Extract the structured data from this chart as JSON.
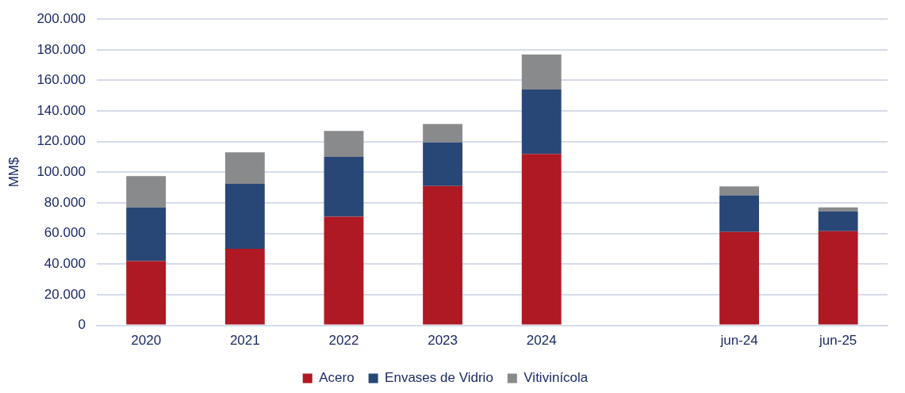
{
  "chart_data": {
    "type": "bar",
    "stacked": true,
    "ylabel": "MM$",
    "categories": [
      "2020",
      "2021",
      "2022",
      "2023",
      "2024",
      null,
      "jun-24",
      "jun-25"
    ],
    "series": [
      {
        "name": "Acero",
        "color": "#ae1923",
        "values": [
          42000,
          50000,
          71000,
          91000,
          112000,
          null,
          61000,
          61500
        ]
      },
      {
        "name": "Envases de Vidrio",
        "color": "#284776",
        "values": [
          35000,
          42500,
          39000,
          28500,
          42000,
          null,
          24000,
          13000
        ]
      },
      {
        "name": "Vitivinícola",
        "color": "#898a8c",
        "values": [
          20500,
          20500,
          17000,
          12000,
          23000,
          null,
          5700,
          2500
        ]
      }
    ],
    "ylim": [
      0,
      200000
    ],
    "yticks": [
      0,
      {
        "value": 20000,
        "label": "20.000"
      },
      {
        "value": 40000,
        "label": "40.000"
      },
      {
        "value": 60000,
        "label": "60.000"
      },
      {
        "value": 80000,
        "label": "80.000"
      },
      {
        "value": 100000,
        "label": "100.000"
      },
      {
        "value": 120000,
        "label": "120.000"
      },
      {
        "value": 140000,
        "label": "140.000"
      },
      {
        "value": 160000,
        "label": "160.000"
      },
      {
        "value": 180000,
        "label": "180.000"
      },
      {
        "value": 200000,
        "label": "200.000"
      }
    ],
    "grid": "y",
    "legend": "bottom"
  }
}
